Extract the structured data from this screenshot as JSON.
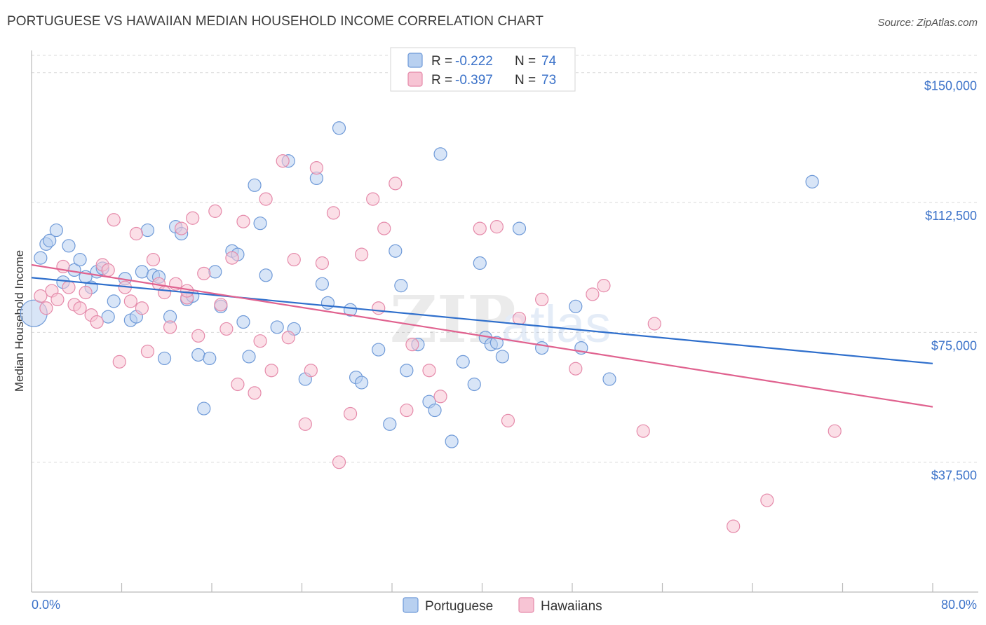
{
  "header": {
    "title": "PORTUGUESE VS HAWAIIAN MEDIAN HOUSEHOLD INCOME CORRELATION CHART",
    "source": "Source: ZipAtlas.com"
  },
  "watermark": {
    "zip": "ZIP",
    "atlas": "atlas"
  },
  "legend_top": [
    {
      "r_label": "R = ",
      "r_value": "-0.222",
      "n_label": "N = ",
      "n_value": "74"
    },
    {
      "r_label": "R = ",
      "r_value": "-0.397",
      "n_label": "N = ",
      "n_value": "73"
    }
  ],
  "legend_bottom": [
    "Portuguese",
    "Hawaiians"
  ],
  "colors": {
    "portuguese_fill": "#b8d0f0",
    "portuguese_stroke": "#6f9ad8",
    "portuguese_line": "#2f6fcc",
    "hawaiians_fill": "#f7c4d4",
    "hawaiians_stroke": "#e58aaa",
    "hawaiians_line": "#e0628f",
    "axis_text": "#3b72c9",
    "grid": "#d9d9d9"
  },
  "chart_data": {
    "type": "scatter",
    "title": "PORTUGUESE VS HAWAIIAN MEDIAN HOUSEHOLD INCOME CORRELATION CHART",
    "xlabel": "",
    "ylabel": "Median Household Income",
    "xlim": [
      0,
      80
    ],
    "ylim": [
      0,
      155000
    ],
    "x_tick_labels": [
      "0.0%",
      "80.0%"
    ],
    "y_ticks": [
      37500,
      75000,
      112500,
      150000
    ],
    "y_tick_labels": [
      "$37,500",
      "$75,000",
      "$112,500",
      "$150,000"
    ],
    "grid": "horizontal dashed",
    "legend_position": "top-center",
    "series": [
      {
        "name": "Portuguese",
        "trend": {
          "x": [
            0,
            80
          ],
          "y": [
            90800,
            66000
          ]
        },
        "points": [
          [
            0.2,
            80500
          ],
          [
            0.8,
            96500
          ],
          [
            1.3,
            100500
          ],
          [
            1.6,
            101500
          ],
          [
            2.2,
            104500
          ],
          [
            2.8,
            89500
          ],
          [
            3.3,
            100000
          ],
          [
            3.8,
            93000
          ],
          [
            4.3,
            96000
          ],
          [
            4.8,
            91000
          ],
          [
            5.3,
            88000
          ],
          [
            5.8,
            92500
          ],
          [
            6.3,
            93500
          ],
          [
            6.8,
            79500
          ],
          [
            7.3,
            84000
          ],
          [
            8.3,
            90500
          ],
          [
            8.8,
            78500
          ],
          [
            9.3,
            79500
          ],
          [
            9.8,
            92500
          ],
          [
            10.3,
            104500
          ],
          [
            10.8,
            91500
          ],
          [
            11.3,
            91000
          ],
          [
            11.8,
            67500
          ],
          [
            12.3,
            79500
          ],
          [
            12.8,
            105500
          ],
          [
            13.3,
            103500
          ],
          [
            13.8,
            84500
          ],
          [
            14.3,
            85500
          ],
          [
            14.8,
            68500
          ],
          [
            15.3,
            53000
          ],
          [
            15.8,
            67500
          ],
          [
            16.3,
            92500
          ],
          [
            16.8,
            82500
          ],
          [
            17.8,
            98500
          ],
          [
            18.3,
            97500
          ],
          [
            18.8,
            78000
          ],
          [
            19.3,
            68000
          ],
          [
            19.8,
            117500
          ],
          [
            20.3,
            106500
          ],
          [
            20.8,
            91500
          ],
          [
            21.8,
            76500
          ],
          [
            22.8,
            124500
          ],
          [
            23.3,
            76000
          ],
          [
            24.3,
            61500
          ],
          [
            25.3,
            119500
          ],
          [
            25.8,
            89000
          ],
          [
            26.3,
            83500
          ],
          [
            27.3,
            134000
          ],
          [
            28.3,
            81500
          ],
          [
            28.8,
            62000
          ],
          [
            29.3,
            60500
          ],
          [
            30.8,
            70000
          ],
          [
            31.8,
            48500
          ],
          [
            32.3,
            98500
          ],
          [
            32.8,
            88500
          ],
          [
            33.3,
            64000
          ],
          [
            34.3,
            71500
          ],
          [
            35.3,
            55000
          ],
          [
            35.8,
            52500
          ],
          [
            36.3,
            126500
          ],
          [
            37.3,
            43500
          ],
          [
            38.3,
            66500
          ],
          [
            39.3,
            60000
          ],
          [
            39.8,
            95000
          ],
          [
            40.3,
            73500
          ],
          [
            40.8,
            71500
          ],
          [
            41.8,
            68000
          ],
          [
            41.3,
            72000
          ],
          [
            43.3,
            105000
          ],
          [
            45.3,
            70500
          ],
          [
            48.3,
            82500
          ],
          [
            48.8,
            70500
          ],
          [
            51.3,
            61500
          ],
          [
            69.3,
            118500
          ]
        ]
      },
      {
        "name": "Hawaiians",
        "trend": {
          "x": [
            0,
            80
          ],
          "y": [
            94500,
            53500
          ]
        },
        "points": [
          [
            0.8,
            85500
          ],
          [
            1.3,
            82000
          ],
          [
            1.8,
            87000
          ],
          [
            2.3,
            84500
          ],
          [
            2.8,
            94000
          ],
          [
            3.3,
            88000
          ],
          [
            3.8,
            83000
          ],
          [
            4.3,
            82000
          ],
          [
            4.8,
            86500
          ],
          [
            5.3,
            80000
          ],
          [
            5.8,
            78000
          ],
          [
            6.3,
            94500
          ],
          [
            6.8,
            93000
          ],
          [
            7.3,
            107500
          ],
          [
            7.8,
            66500
          ],
          [
            8.3,
            88000
          ],
          [
            8.8,
            84000
          ],
          [
            9.3,
            103500
          ],
          [
            9.8,
            82000
          ],
          [
            10.3,
            69500
          ],
          [
            10.8,
            96000
          ],
          [
            11.3,
            89000
          ],
          [
            11.8,
            86500
          ],
          [
            12.3,
            76500
          ],
          [
            12.8,
            89000
          ],
          [
            13.3,
            105000
          ],
          [
            13.8,
            85000
          ],
          [
            14.3,
            108000
          ],
          [
            14.8,
            74000
          ],
          [
            15.3,
            92000
          ],
          [
            16.3,
            110000
          ],
          [
            16.8,
            83000
          ],
          [
            17.3,
            76000
          ],
          [
            17.8,
            96500
          ],
          [
            18.3,
            60000
          ],
          [
            18.8,
            107000
          ],
          [
            19.8,
            57500
          ],
          [
            20.3,
            72500
          ],
          [
            20.8,
            113500
          ],
          [
            21.3,
            64000
          ],
          [
            22.3,
            124500
          ],
          [
            22.8,
            73500
          ],
          [
            23.3,
            96000
          ],
          [
            24.3,
            48500
          ],
          [
            24.8,
            64000
          ],
          [
            25.3,
            122500
          ],
          [
            25.8,
            95000
          ],
          [
            26.8,
            109500
          ],
          [
            27.3,
            37500
          ],
          [
            28.3,
            51500
          ],
          [
            29.3,
            97500
          ],
          [
            30.3,
            113500
          ],
          [
            30.8,
            82000
          ],
          [
            31.3,
            105000
          ],
          [
            32.3,
            118000
          ],
          [
            33.3,
            52500
          ],
          [
            33.8,
            71500
          ],
          [
            35.3,
            64000
          ],
          [
            36.3,
            56500
          ],
          [
            39.8,
            105000
          ],
          [
            41.3,
            105500
          ],
          [
            42.3,
            49500
          ],
          [
            43.3,
            79000
          ],
          [
            45.3,
            84500
          ],
          [
            48.3,
            64500
          ],
          [
            49.8,
            86000
          ],
          [
            50.8,
            88500
          ],
          [
            54.3,
            46500
          ],
          [
            55.3,
            77500
          ],
          [
            62.3,
            19000
          ],
          [
            65.3,
            26500
          ],
          [
            71.3,
            46500
          ],
          [
            13.8,
            87000
          ]
        ]
      }
    ]
  }
}
